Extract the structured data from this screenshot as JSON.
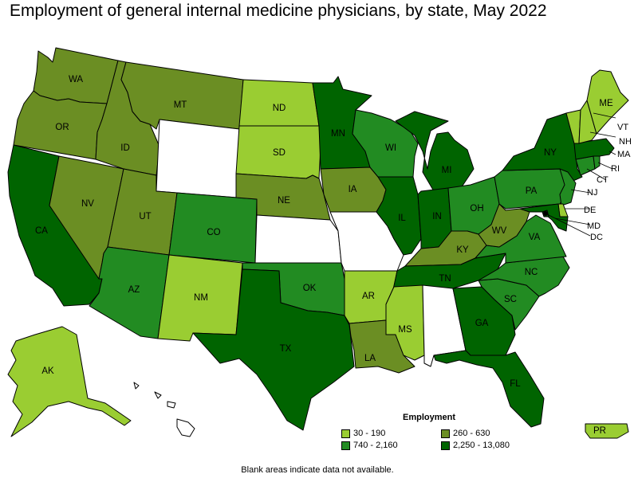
{
  "title": "Employment of general internal medicine physicians, by state, May 2022",
  "legend": {
    "title": "Employment",
    "items": [
      {
        "range": "30 - 190",
        "color": "#9acd32"
      },
      {
        "range": "260 - 630",
        "color": "#6b8e23"
      },
      {
        "range": "740 - 2,160",
        "color": "#228b22"
      },
      {
        "range": "2,250 - 13,080",
        "color": "#006400"
      }
    ]
  },
  "footnote": "Blank areas indicate data not available.",
  "no_data_color": "#ffffff",
  "states": {
    "WA": {
      "label": "WA",
      "class": 1
    },
    "OR": {
      "label": "OR",
      "class": 1
    },
    "CA": {
      "label": "CA",
      "class": 3
    },
    "NV": {
      "label": "NV",
      "class": 1
    },
    "ID": {
      "label": "ID",
      "class": 1
    },
    "MT": {
      "label": "MT",
      "class": 1
    },
    "WY": {
      "label": "",
      "class": null
    },
    "UT": {
      "label": "UT",
      "class": 1
    },
    "AZ": {
      "label": "AZ",
      "class": 2
    },
    "CO": {
      "label": "CO",
      "class": 2
    },
    "NM": {
      "label": "NM",
      "class": 0
    },
    "ND": {
      "label": "ND",
      "class": 0
    },
    "SD": {
      "label": "SD",
      "class": 0
    },
    "NE": {
      "label": "NE",
      "class": 1
    },
    "KS": {
      "label": "",
      "class": null
    },
    "OK": {
      "label": "OK",
      "class": 2
    },
    "TX": {
      "label": "TX",
      "class": 3
    },
    "MN": {
      "label": "MN",
      "class": 3
    },
    "IA": {
      "label": "IA",
      "class": 1
    },
    "MO": {
      "label": "",
      "class": null
    },
    "AR": {
      "label": "AR",
      "class": 0
    },
    "LA": {
      "label": "LA",
      "class": 1
    },
    "WI": {
      "label": "WI",
      "class": 2
    },
    "IL": {
      "label": "IL",
      "class": 3
    },
    "MI": {
      "label": "MI",
      "class": 3
    },
    "IN": {
      "label": "IN",
      "class": 3
    },
    "OH": {
      "label": "OH",
      "class": 2
    },
    "KY": {
      "label": "KY",
      "class": 1
    },
    "TN": {
      "label": "TN",
      "class": 3
    },
    "MS": {
      "label": "MS",
      "class": 0
    },
    "AL": {
      "label": "",
      "class": null
    },
    "GA": {
      "label": "GA",
      "class": 3
    },
    "FL": {
      "label": "FL",
      "class": 3
    },
    "SC": {
      "label": "SC",
      "class": 2
    },
    "NC": {
      "label": "NC",
      "class": 2
    },
    "VA": {
      "label": "VA",
      "class": 2
    },
    "WV": {
      "label": "WV",
      "class": 1
    },
    "PA": {
      "label": "PA",
      "class": 2
    },
    "NY": {
      "label": "NY",
      "class": 3
    },
    "VT": {
      "label": "VT",
      "class": 0
    },
    "NH": {
      "label": "NH",
      "class": 0
    },
    "ME": {
      "label": "ME",
      "class": 0
    },
    "MA": {
      "label": "MA",
      "class": 3
    },
    "RI": {
      "label": "RI",
      "class": 2
    },
    "CT": {
      "label": "CT",
      "class": 2
    },
    "NJ": {
      "label": "NJ",
      "class": 2
    },
    "DE": {
      "label": "DE",
      "class": 0
    },
    "MD": {
      "label": "MD",
      "class": 3
    },
    "DC": {
      "label": "DC",
      "class": 3
    },
    "AK": {
      "label": "AK",
      "class": 0
    },
    "HI": {
      "label": "",
      "class": null
    },
    "PR": {
      "label": "PR",
      "class": 0
    }
  }
}
